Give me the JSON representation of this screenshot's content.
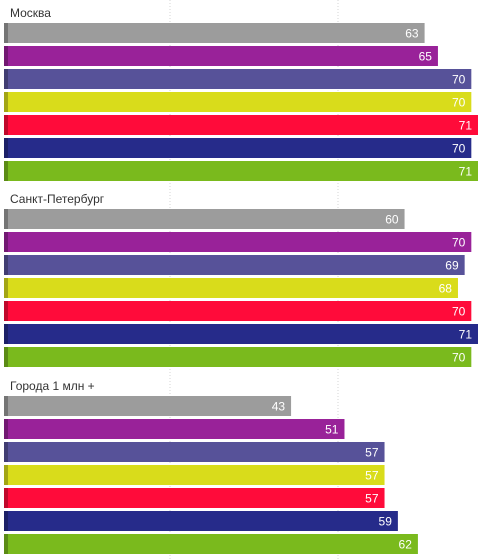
{
  "chart_data": {
    "type": "bar",
    "orientation": "horizontal",
    "xlim": [
      0,
      71
    ],
    "grid": true,
    "series_colors": [
      "#9c9c9c",
      "#992299",
      "#575299",
      "#d9dc1b",
      "#ff0b3a",
      "#262b8a",
      "#7aba1d"
    ],
    "groups": [
      {
        "label": "Москва",
        "values": [
          63,
          65,
          70,
          70,
          71,
          70,
          71
        ]
      },
      {
        "label": "Санкт-Петербург",
        "values": [
          60,
          70,
          69,
          68,
          70,
          71,
          70
        ]
      },
      {
        "label": "Города 1 млн +",
        "values": [
          43,
          51,
          57,
          57,
          57,
          59,
          62
        ]
      }
    ]
  }
}
